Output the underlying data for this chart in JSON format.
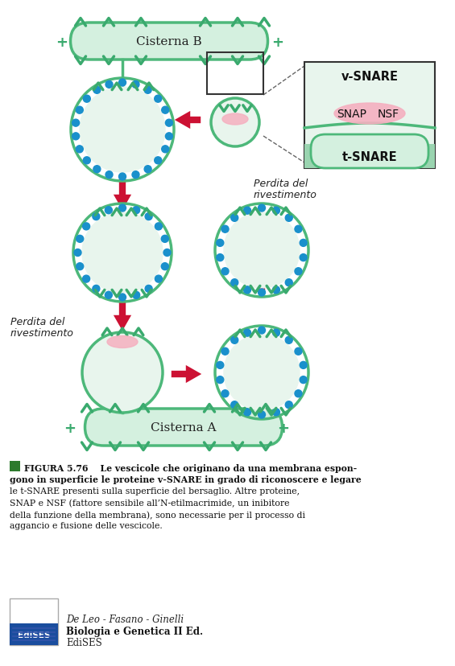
{
  "bg_color": "#ffffff",
  "mem_color": "#4db87a",
  "mem_fill": "#d4f0df",
  "vesicle_fill": "#e8f5ed",
  "dot_color": "#1a90cc",
  "red_color": "#cc1133",
  "teal": "#3aaa6e",
  "pink": "#f5b0c0",
  "snare_box_fill": "#e8f5ed",
  "cisterna_b": "Cisterna B",
  "cisterna_a": "Cisterna A",
  "t_snare": "t-SNARE",
  "snap": "SNAP",
  "nsf": "NSF",
  "v_snare": "v-SNARE",
  "perdita1": "Perdita del",
  "perdita2": "rivestimento",
  "fig_num": "FIGURA 5.76",
  "cap_bold1": "Le vescicole che originano da una membrana espon-",
  "cap_bold2": "gono in superficie le proteine v-SNARE in grado di riconoscere e legare",
  "cap_bold3": "le t-SNARE presenti sulla superficie del bersaglio.",
  "cap_norm1": " Altre proteine,",
  "cap_norm2": "SNAP e NSF (fattore sensibile all’N-etilmacrimide, un inibitore",
  "cap_norm3": "della funzione della membrana), sono necessarie per il processo di",
  "cap_norm4": "aggancio e fusione delle vescicole.",
  "pub1": "De Leo - Fasano - Ginelli",
  "pub2": "Biologia e Genetica II Ed.",
  "pub3": "EdiSES"
}
